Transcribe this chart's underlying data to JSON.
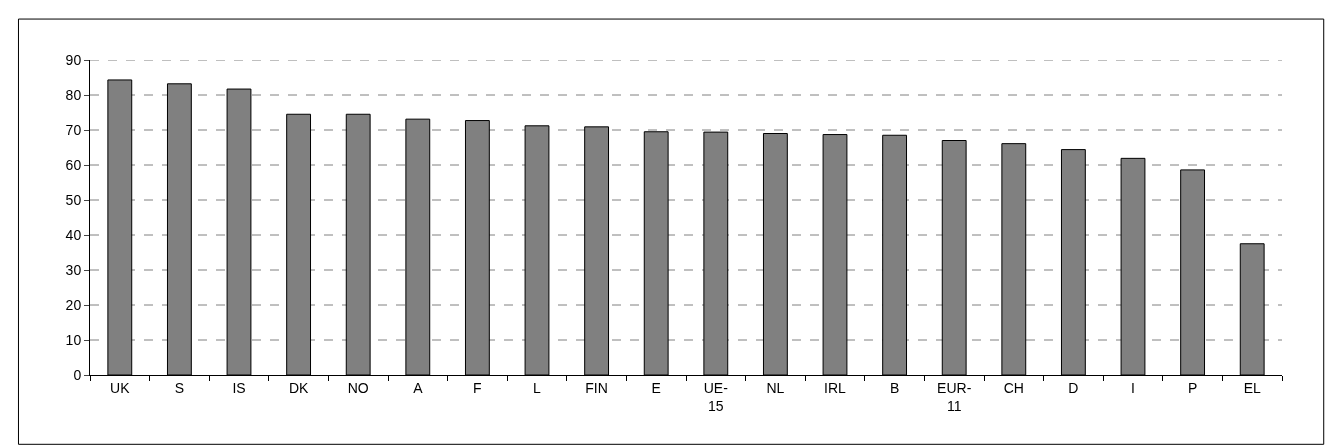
{
  "chart_data": {
    "type": "bar",
    "categories": [
      "UK",
      "S",
      "IS",
      "DK",
      "NO",
      "A",
      "F",
      "L",
      "FIN",
      "E",
      "UE-15",
      "NL",
      "IRL",
      "B",
      "EUR-11",
      "CH",
      "D",
      "I",
      "P",
      "EL"
    ],
    "values": [
      84.3,
      83.2,
      81.7,
      74.5,
      74.5,
      73.1,
      72.7,
      71.2,
      70.9,
      69.5,
      69.4,
      69.0,
      68.7,
      68.5,
      67.0,
      66.1,
      64.4,
      61.9,
      58.6,
      37.5
    ],
    "color": "#808080",
    "ylim": [
      0,
      90
    ],
    "yticks": [
      0,
      10,
      20,
      30,
      40,
      50,
      60,
      70,
      80,
      90
    ],
    "grid": "y"
  }
}
